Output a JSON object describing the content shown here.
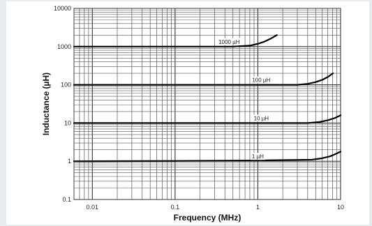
{
  "chart_data": {
    "type": "line",
    "title": "",
    "xlabel": "Frequency (MHz)",
    "ylabel": "Inductance (µH)",
    "x_scale": "log",
    "y_scale": "log",
    "xlim": [
      0.01,
      10
    ],
    "ylim": [
      0.1,
      10000
    ],
    "x_ticks": [
      "0.01",
      "0.1",
      "1",
      "10"
    ],
    "y_ticks": [
      "10000",
      "1000",
      "100",
      "10",
      "1",
      "0.1"
    ],
    "grid": true,
    "legend": "none",
    "series": [
      {
        "name": "1000 µH",
        "x": [
          0.006,
          0.05,
          0.5,
          0.8,
          1.0,
          1.2,
          1.4,
          1.7
        ],
        "y": [
          1000,
          1000,
          1000,
          1060,
          1180,
          1350,
          1580,
          2000
        ]
      },
      {
        "name": "100 µH",
        "x": [
          0.006,
          0.1,
          1,
          3.0,
          4.0,
          5.0,
          6.0,
          7.0,
          8.1
        ],
        "y": [
          100,
          100,
          100,
          100,
          106,
          118,
          135,
          160,
          200
        ]
      },
      {
        "name": "10 µH",
        "x": [
          0.006,
          0.1,
          1,
          4.0,
          5.5,
          7.0,
          8.5,
          10.0
        ],
        "y": [
          10,
          10,
          10,
          10,
          10.6,
          11.8,
          13.5,
          16
        ]
      },
      {
        "name": "1 µH",
        "x": [
          0.006,
          0.1,
          1,
          4.5,
          6.0,
          7.5,
          9.0,
          10.0
        ],
        "y": [
          1,
          1.02,
          1.05,
          1.1,
          1.2,
          1.35,
          1.6,
          1.8
        ]
      }
    ]
  }
}
